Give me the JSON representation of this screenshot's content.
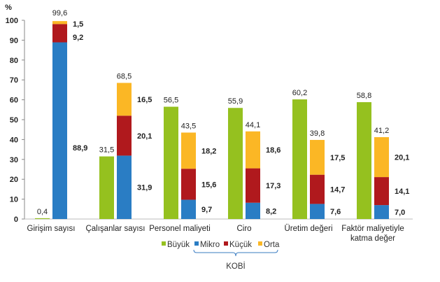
{
  "chart_data": {
    "type": "bar",
    "stacked_groups": true,
    "y_unit_label": "%",
    "ylim": [
      0,
      100
    ],
    "yticks": [
      "0",
      "10",
      "20",
      "30",
      "40",
      "50",
      "60",
      "70",
      "80",
      "90",
      "100"
    ],
    "grid": false,
    "categories": [
      [
        "Girişim sayısı"
      ],
      [
        "Çalışanlar sayısı"
      ],
      [
        "Personel maliyeti"
      ],
      [
        "Ciro"
      ],
      [
        "Üretim değeri"
      ],
      [
        "Faktör maliyetiyle",
        "katma değer"
      ]
    ],
    "series": [
      {
        "name": "Büyük",
        "color": "#95C11F",
        "stack": "buyuk",
        "values": [
          0.4,
          31.5,
          56.5,
          55.9,
          60.2,
          58.8
        ],
        "labels": [
          "0,4",
          "31,5",
          "56,5",
          "55,9",
          "60,2",
          "58,8"
        ]
      },
      {
        "name": "Mikro",
        "color": "#2A7DC4",
        "stack": "kobi",
        "values": [
          88.9,
          31.9,
          9.7,
          8.2,
          7.6,
          7.0
        ],
        "labels": [
          "88,9",
          "31,9",
          "9,7",
          "8,2",
          "7,6",
          "7,0"
        ]
      },
      {
        "name": "Küçük",
        "color": "#B0191D",
        "stack": "kobi",
        "values": [
          9.2,
          20.1,
          15.6,
          17.3,
          14.7,
          14.1
        ],
        "labels": [
          "9,2",
          "20,1",
          "15,6",
          "17,3",
          "14,7",
          "14,1"
        ]
      },
      {
        "name": "Orta",
        "color": "#FBB725",
        "stack": "kobi",
        "values": [
          1.5,
          16.5,
          18.2,
          18.6,
          17.5,
          20.1
        ],
        "labels": [
          "1,5",
          "16,5",
          "18,2",
          "18,6",
          "17,5",
          "20,1"
        ]
      }
    ],
    "kobi_totals": {
      "values": [
        99.6,
        68.5,
        43.5,
        44.1,
        39.8,
        41.2
      ],
      "labels": [
        "99,6",
        "68,5",
        "43,5",
        "44,1",
        "39,8",
        "41,2"
      ]
    },
    "legend": {
      "placement": "bottom",
      "group_label": "KOBİ"
    }
  }
}
